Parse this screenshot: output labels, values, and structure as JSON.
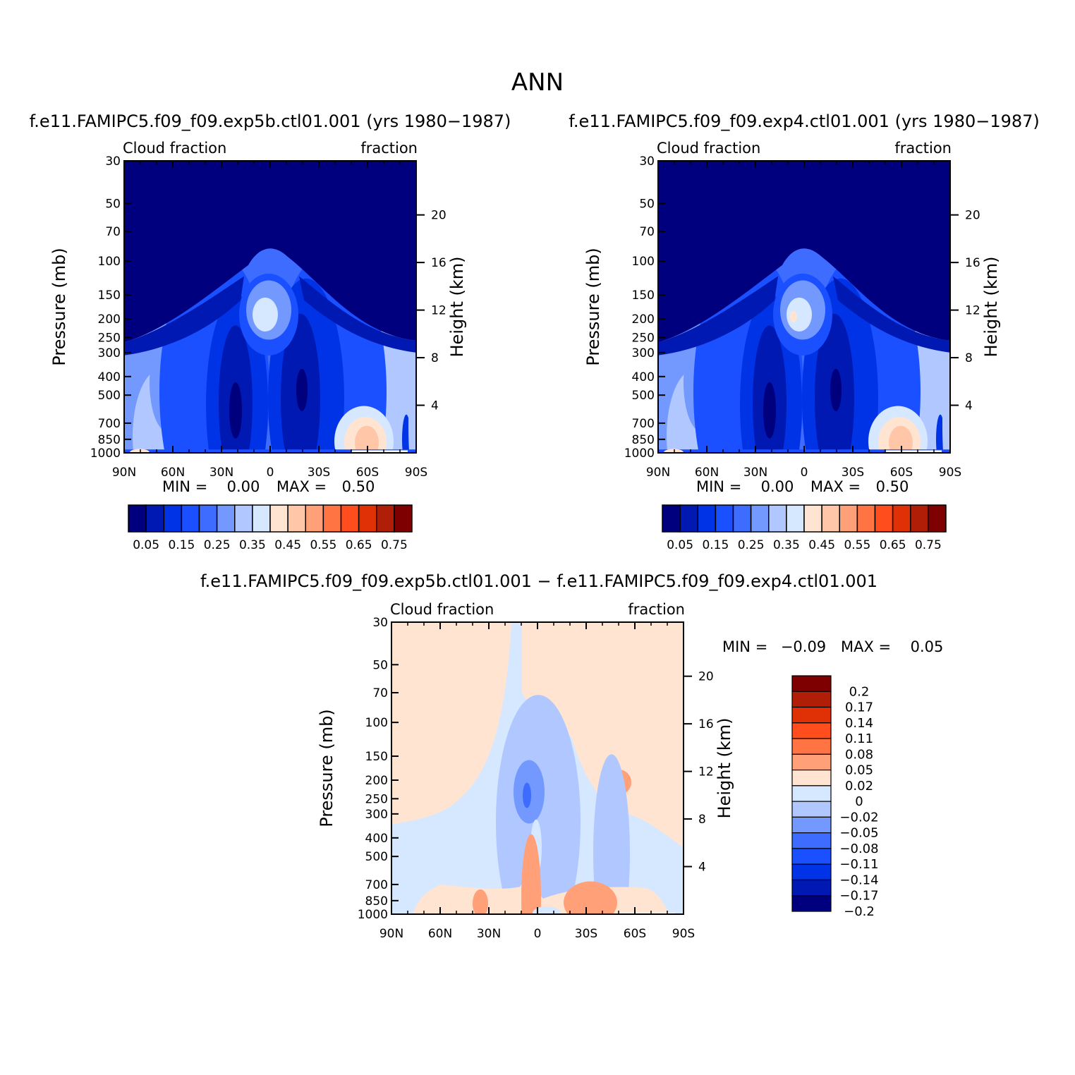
{
  "figure_title": "ANN",
  "chart_data": [
    {
      "type": "heatmap",
      "title": "f.e11.FAMIPC5.f09_f09.exp5b.ctl01.001 (yrs 1980−1987)",
      "left_label": "Cloud fraction",
      "right_label": "fraction",
      "ylabel": "Pressure (mb)",
      "ylabel_right": "Height (km)",
      "x_ticks": [
        "90N",
        "60N",
        "30N",
        "0",
        "30S",
        "60S",
        "90S"
      ],
      "y_ticks": [
        "30",
        "50",
        "70",
        "100",
        "150",
        "200",
        "250",
        "300",
        "400",
        "500",
        "700",
        "850",
        "1000"
      ],
      "y_right_ticks": [
        "20",
        "16",
        "12",
        "8",
        "4"
      ],
      "min_label": "MIN =",
      "min_value": "0.00",
      "max_label": "MAX =",
      "max_value": "0.50",
      "colorbar": {
        "orientation": "horizontal",
        "colors": [
          "#00007f",
          "#0019b2",
          "#0033e5",
          "#1a50ff",
          "#3d6cff",
          "#7399ff",
          "#b0c8ff",
          "#d6e8ff",
          "#ffe4d2",
          "#ffc6a8",
          "#ffa078",
          "#ff7442",
          "#ff4d1e",
          "#e03005",
          "#b01e08",
          "#7f0000"
        ],
        "labels": [
          "0.05",
          "0.15",
          "0.25",
          "0.35",
          "0.45",
          "0.55",
          "0.65",
          "0.75"
        ]
      }
    },
    {
      "type": "heatmap",
      "title": "f.e11.FAMIPC5.f09_f09.exp4.ctl01.001 (yrs 1980−1987)",
      "left_label": "Cloud fraction",
      "right_label": "fraction",
      "ylabel": "Pressure (mb)",
      "ylabel_right": "Height (km)",
      "x_ticks": [
        "90N",
        "60N",
        "30N",
        "0",
        "30S",
        "60S",
        "90S"
      ],
      "y_ticks": [
        "30",
        "50",
        "70",
        "100",
        "150",
        "200",
        "250",
        "300",
        "400",
        "500",
        "700",
        "850",
        "1000"
      ],
      "y_right_ticks": [
        "20",
        "16",
        "12",
        "8",
        "4"
      ],
      "min_label": "MIN =",
      "min_value": "0.00",
      "max_label": "MAX =",
      "max_value": "0.50",
      "colorbar": {
        "orientation": "horizontal",
        "colors": [
          "#00007f",
          "#0019b2",
          "#0033e5",
          "#1a50ff",
          "#3d6cff",
          "#7399ff",
          "#b0c8ff",
          "#d6e8ff",
          "#ffe4d2",
          "#ffc6a8",
          "#ffa078",
          "#ff7442",
          "#ff4d1e",
          "#e03005",
          "#b01e08",
          "#7f0000"
        ],
        "labels": [
          "0.05",
          "0.15",
          "0.25",
          "0.35",
          "0.45",
          "0.55",
          "0.65",
          "0.75"
        ]
      }
    },
    {
      "type": "heatmap",
      "title": "f.e11.FAMIPC5.f09_f09.exp5b.ctl01.001 − f.e11.FAMIPC5.f09_f09.exp4.ctl01.001",
      "left_label": "Cloud fraction",
      "right_label": "fraction",
      "ylabel": "Pressure (mb)",
      "ylabel_right": "Height (km)",
      "x_ticks": [
        "90N",
        "60N",
        "30N",
        "0",
        "30S",
        "60S",
        "90S"
      ],
      "y_ticks": [
        "30",
        "50",
        "70",
        "100",
        "150",
        "200",
        "250",
        "300",
        "400",
        "500",
        "700",
        "850",
        "1000"
      ],
      "y_right_ticks": [
        "20",
        "16",
        "12",
        "8",
        "4"
      ],
      "min_label": "MIN =",
      "min_value": "−0.09",
      "max_label": "MAX =",
      "max_value": "0.05",
      "colorbar": {
        "orientation": "vertical",
        "colors": [
          "#7f0000",
          "#b01e08",
          "#e03005",
          "#ff4d1e",
          "#ff7442",
          "#ffa078",
          "#ffe4d2",
          "#d6e8ff",
          "#b0c8ff",
          "#7399ff",
          "#3d6cff",
          "#1a50ff",
          "#0033e5",
          "#0019b2",
          "#00007f"
        ],
        "labels": [
          "0.2",
          "0.17",
          "0.14",
          "0.11",
          "0.08",
          "0.05",
          "0.02",
          "0",
          "−0.02",
          "−0.05",
          "−0.08",
          "−0.11",
          "−0.14",
          "−0.17",
          "−0.2"
        ]
      }
    }
  ]
}
